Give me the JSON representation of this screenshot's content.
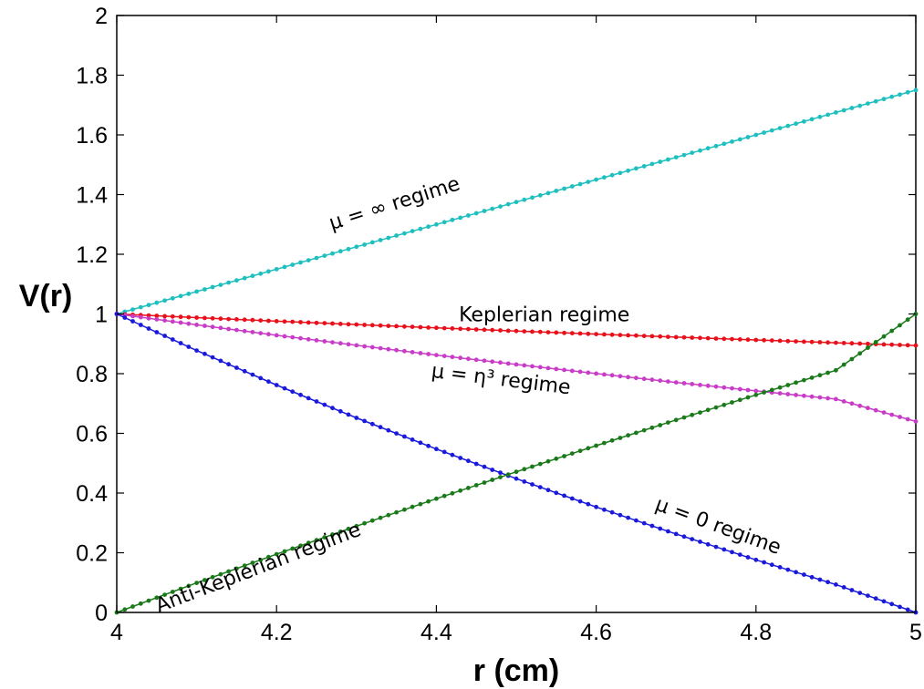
{
  "chart_data": {
    "type": "line",
    "xlabel": "r (cm)",
    "ylabel": "V(r)",
    "xlim": [
      4,
      5
    ],
    "ylim": [
      0,
      2
    ],
    "xticks": [
      "4",
      "4.2",
      "4.4",
      "4.6",
      "4.8",
      "5"
    ],
    "yticks": [
      "0",
      "0.2",
      "0.4",
      "0.6",
      "0.8",
      "1",
      "1.2",
      "1.4",
      "1.6",
      "1.8",
      "2"
    ],
    "grid": false,
    "legend": "none",
    "x": [
      4.0,
      4.1,
      4.2,
      4.3,
      4.4,
      4.5,
      4.6,
      4.7,
      4.8,
      4.9,
      5.0
    ],
    "series": [
      {
        "color": "#1fbfbf",
        "values": [
          1.0,
          1.075,
          1.15,
          1.225,
          1.3,
          1.375,
          1.45,
          1.525,
          1.6,
          1.675,
          1.75
        ]
      },
      {
        "color": "#e8101a",
        "values": [
          1.0,
          0.9878,
          0.9759,
          0.9645,
          0.9535,
          0.9428,
          0.9325,
          0.9225,
          0.9129,
          0.9035,
          0.8944
        ]
      },
      {
        "color": "#c83cc8",
        "values": [
          1.0,
          0.9637,
          0.9287,
          0.895,
          0.8623,
          0.8308,
          0.8003,
          0.7708,
          0.7423,
          0.7147,
          0.64
        ]
      },
      {
        "color": "#1a1adc",
        "values": [
          1.0,
          0.8777,
          0.7619,
          0.652,
          0.5475,
          0.4481,
          0.3533,
          0.2628,
          0.1762,
          0.0935,
          0.0
        ]
      },
      {
        "color": "#1a7a1a",
        "values": [
          0.0,
          0.0988,
          0.1952,
          0.2893,
          0.3812,
          0.4711,
          0.5589,
          0.6448,
          0.7289,
          0.8112,
          1.0
        ]
      }
    ],
    "annotations": [
      {
        "text": "μ = ∞ regime",
        "x": 4.35,
        "y": 1.35,
        "angle": -17.5
      },
      {
        "text": "Keplerian regime",
        "x": 4.535,
        "y": 0.975,
        "angle": 0
      },
      {
        "text": "μ = η³ regime",
        "x": 4.48,
        "y": 0.76,
        "angle": 7
      },
      {
        "text": "Anti-Keplerian regime",
        "x": 4.18,
        "y": 0.13,
        "angle": -21
      },
      {
        "text": "μ = 0 regime",
        "x": 4.75,
        "y": 0.27,
        "angle": 20
      }
    ]
  }
}
